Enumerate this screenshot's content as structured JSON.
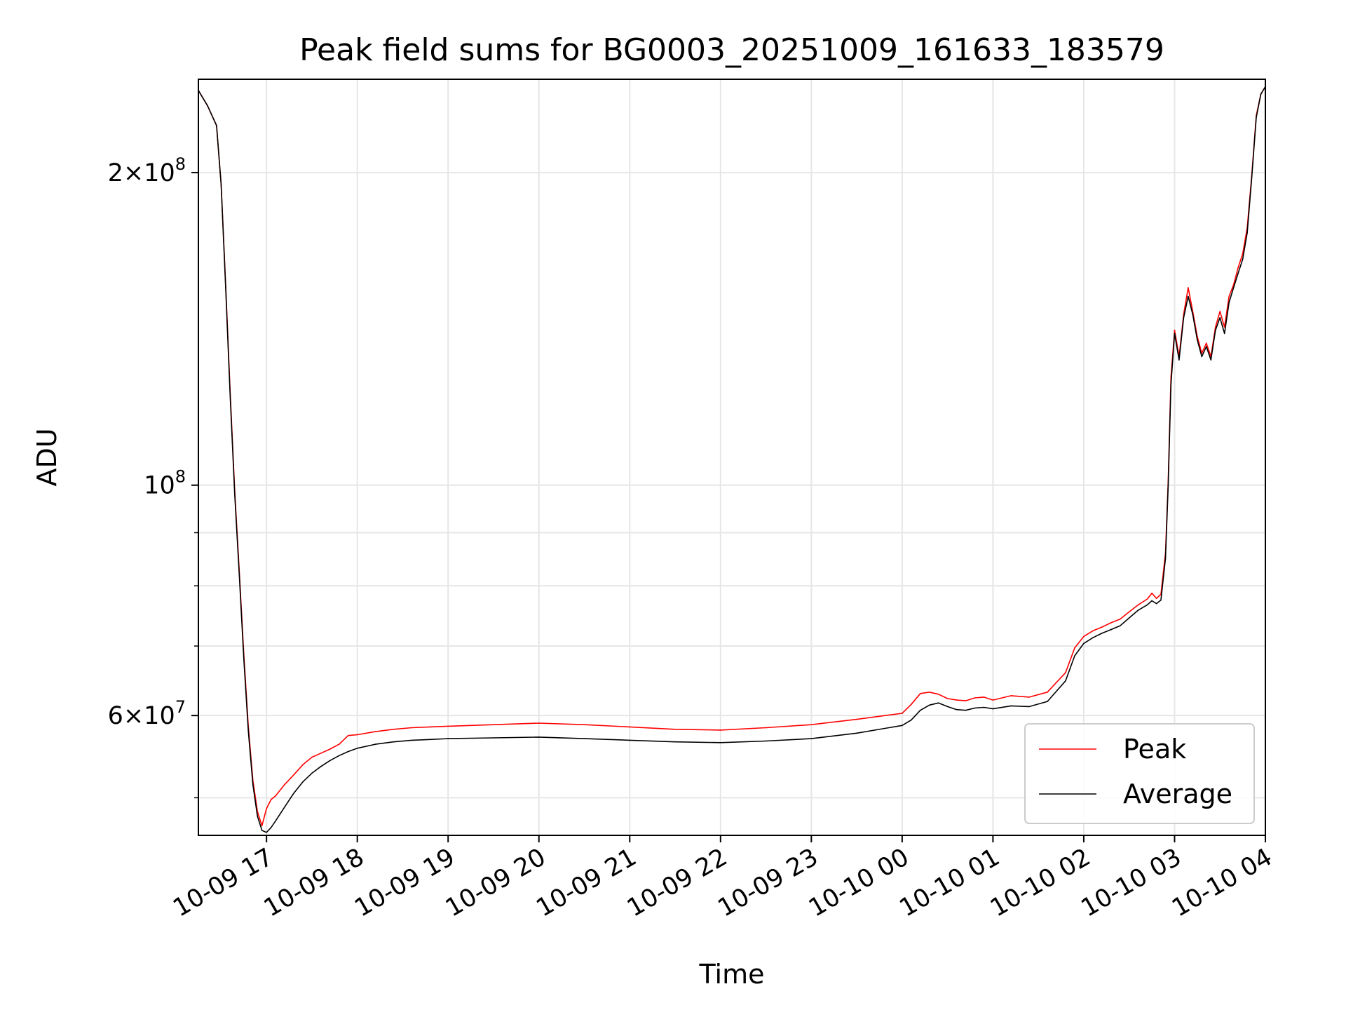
{
  "chart_data": {
    "type": "line",
    "title": "Peak field sums for BG0003_20251009_161633_183579",
    "xlabel": "Time",
    "ylabel": "ADU",
    "yscale": "log",
    "grid": true,
    "legend_position": "lower-right",
    "xlim": [
      16.25,
      28.0
    ],
    "ylim": [
      46000000,
      246000000
    ],
    "x_unit": "hours since 2025-10-09 00:00",
    "x_ticks": [
      {
        "value": 17,
        "label": "10-09 17"
      },
      {
        "value": 18,
        "label": "10-09 18"
      },
      {
        "value": 19,
        "label": "10-09 19"
      },
      {
        "value": 20,
        "label": "10-09 20"
      },
      {
        "value": 21,
        "label": "10-09 21"
      },
      {
        "value": 22,
        "label": "10-09 22"
      },
      {
        "value": 23,
        "label": "10-09 23"
      },
      {
        "value": 24,
        "label": "10-10 00"
      },
      {
        "value": 25,
        "label": "10-10 01"
      },
      {
        "value": 26,
        "label": "10-10 02"
      },
      {
        "value": 27,
        "label": "10-10 03"
      },
      {
        "value": 28,
        "label": "10-10 04"
      }
    ],
    "y_major_ticks": [
      {
        "value": 200000000,
        "mantissa": "2",
        "exponent": "8"
      },
      {
        "value": 100000000,
        "mantissa": "",
        "exponent": "8"
      },
      {
        "value": 60000000,
        "mantissa": "6",
        "exponent": "7"
      }
    ],
    "y_minor_ticks": [
      50000000,
      70000000,
      80000000,
      90000000
    ],
    "series": [
      {
        "name": "Average",
        "color": "#000000",
        "x": [
          16.25,
          16.35,
          16.45,
          16.5,
          16.55,
          16.6,
          16.65,
          16.7,
          16.75,
          16.8,
          16.85,
          16.9,
          16.95,
          17.0,
          17.05,
          17.1,
          17.2,
          17.3,
          17.4,
          17.5,
          17.6,
          17.7,
          17.8,
          17.9,
          18.0,
          18.2,
          18.4,
          18.6,
          18.8,
          19.0,
          19.5,
          20.0,
          20.5,
          21.0,
          21.5,
          22.0,
          22.5,
          23.0,
          23.5,
          24.0,
          24.1,
          24.2,
          24.3,
          24.4,
          24.5,
          24.6,
          24.7,
          24.8,
          24.9,
          25.0,
          25.2,
          25.4,
          25.6,
          25.8,
          25.9,
          26.0,
          26.1,
          26.2,
          26.3,
          26.4,
          26.5,
          26.6,
          26.7,
          26.75,
          26.8,
          26.85,
          26.9,
          26.93,
          26.96,
          27.0,
          27.05,
          27.1,
          27.15,
          27.2,
          27.25,
          27.3,
          27.35,
          27.4,
          27.45,
          27.5,
          27.55,
          27.6,
          27.65,
          27.7,
          27.75,
          27.8,
          27.85,
          27.9,
          27.95,
          28.0
        ],
        "values": [
          240000000,
          232000000,
          222000000,
          195000000,
          155000000,
          122000000,
          98000000,
          82000000,
          68000000,
          58000000,
          51500000,
          48000000,
          46500000,
          46300000,
          46800000,
          47500000,
          49000000,
          50500000,
          51800000,
          52800000,
          53600000,
          54300000,
          54900000,
          55400000,
          55800000,
          56300000,
          56600000,
          56800000,
          56900000,
          57000000,
          57100000,
          57200000,
          57000000,
          56800000,
          56600000,
          56500000,
          56700000,
          57000000,
          57700000,
          58700000,
          59400000,
          60700000,
          61400000,
          61700000,
          61200000,
          60800000,
          60700000,
          61000000,
          61100000,
          60900000,
          61300000,
          61200000,
          61900000,
          64800000,
          68500000,
          70400000,
          71300000,
          72000000,
          72600000,
          73200000,
          74500000,
          75800000,
          76700000,
          77400000,
          76900000,
          77500000,
          85000000,
          100000000,
          125000000,
          140000000,
          132000000,
          145000000,
          152000000,
          146000000,
          138000000,
          133000000,
          136000000,
          132000000,
          141000000,
          145000000,
          140000000,
          150000000,
          155000000,
          160000000,
          165000000,
          175000000,
          198000000,
          226000000,
          238000000,
          242000000
        ]
      },
      {
        "name": "Peak",
        "color": "#ff0000",
        "x": [
          16.25,
          16.35,
          16.45,
          16.5,
          16.55,
          16.6,
          16.65,
          16.7,
          16.75,
          16.8,
          16.85,
          16.9,
          16.95,
          17.0,
          17.05,
          17.1,
          17.2,
          17.3,
          17.4,
          17.5,
          17.6,
          17.7,
          17.8,
          17.9,
          18.0,
          18.2,
          18.4,
          18.6,
          18.8,
          19.0,
          19.5,
          20.0,
          20.5,
          21.0,
          21.5,
          22.0,
          22.5,
          23.0,
          23.5,
          24.0,
          24.1,
          24.2,
          24.3,
          24.4,
          24.5,
          24.6,
          24.7,
          24.8,
          24.9,
          25.0,
          25.2,
          25.4,
          25.6,
          25.8,
          25.9,
          26.0,
          26.1,
          26.2,
          26.3,
          26.4,
          26.5,
          26.6,
          26.7,
          26.75,
          26.8,
          26.85,
          26.9,
          26.93,
          26.96,
          27.0,
          27.05,
          27.1,
          27.15,
          27.2,
          27.25,
          27.3,
          27.35,
          27.4,
          27.45,
          27.5,
          27.55,
          27.6,
          27.65,
          27.7,
          27.75,
          27.8,
          27.85,
          27.9,
          27.95,
          28.0
        ],
        "values": [
          240000000,
          232000000,
          222000000,
          195000000,
          156000000,
          123000000,
          98800000,
          82700000,
          68700000,
          58600000,
          52000000,
          48500000,
          47000000,
          48800000,
          49800000,
          50200000,
          51500000,
          52600000,
          53800000,
          54700000,
          55200000,
          55700000,
          56300000,
          57400000,
          57500000,
          57900000,
          58200000,
          58400000,
          58500000,
          58600000,
          58800000,
          59000000,
          58800000,
          58500000,
          58200000,
          58100000,
          58400000,
          58800000,
          59500000,
          60300000,
          61500000,
          63000000,
          63200000,
          62900000,
          62300000,
          62100000,
          62000000,
          62400000,
          62500000,
          62100000,
          62700000,
          62500000,
          63200000,
          66000000,
          69700000,
          71500000,
          72400000,
          73000000,
          73700000,
          74300000,
          75500000,
          76700000,
          77700000,
          78700000,
          77800000,
          78500000,
          86000000,
          101000000,
          127000000,
          141000000,
          133000000,
          146000000,
          155000000,
          147000000,
          139000000,
          134000000,
          137000000,
          133000000,
          142000000,
          147000000,
          142000000,
          152000000,
          156000000,
          162000000,
          167000000,
          177000000,
          199000000,
          227000000,
          238000000,
          242000000
        ]
      }
    ]
  }
}
